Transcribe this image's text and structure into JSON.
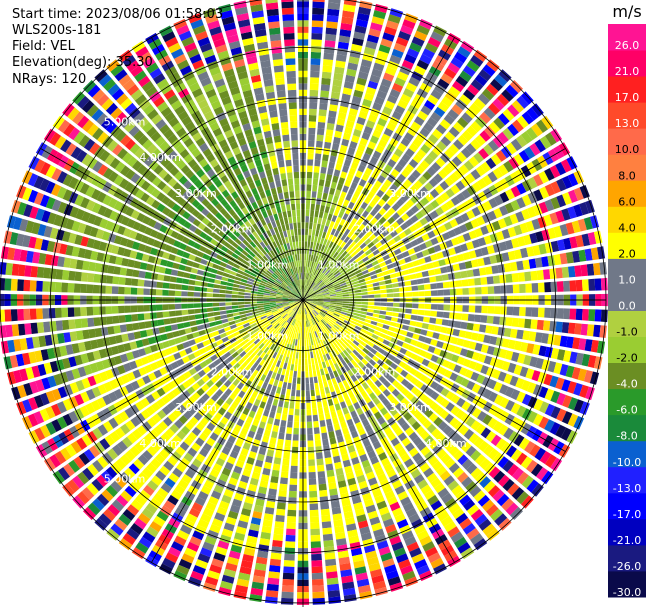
{
  "info": {
    "start_time": "Start time: 2023/08/06 01:58:03",
    "instrument": "WLS200s-181",
    "field": "Field: VEL",
    "elevation": "Elevation(deg): 35.30",
    "nrays": "NRays: 120"
  },
  "chart_data": {
    "type": "heatmap",
    "projection": "polar-ppi",
    "field": "VEL",
    "units": "m/s",
    "n_rays": 120,
    "elevation_deg": 35.3,
    "max_range_km": 6.0,
    "range_rings_km": [
      1,
      2,
      3,
      4,
      5,
      6
    ],
    "azimuth_spokes_deg": [
      0,
      30,
      60,
      90,
      120,
      150,
      180,
      210,
      240,
      270,
      300,
      330
    ],
    "ring_labels": {
      "nw": [
        "1.00km",
        "2.00km",
        "3.00km",
        "4.00km",
        "5.00km"
      ],
      "ne": [
        "1.00km",
        "2.00km",
        "3.00km"
      ],
      "se": [
        "1.00km",
        "2.00km",
        "3.00km",
        "4.00km"
      ],
      "sw": [
        "1.00km",
        "2.00km",
        "3.00km",
        "4.00km",
        "5.00km"
      ]
    },
    "colorbar": {
      "title": "m/s",
      "levels": [
        -30,
        -26,
        -21,
        -17,
        -13,
        -10,
        -8,
        -6,
        -4,
        -2,
        -1,
        0,
        1,
        2,
        4,
        6,
        8,
        10,
        13,
        17,
        21,
        26,
        30
      ],
      "tick_labels": [
        "-30.0",
        "-26.0",
        "-21.0",
        "-17.0",
        "-13.0",
        "-10.0",
        "-8.0",
        "-6.0",
        "-4.0",
        "-2.0",
        "-1.0",
        "0.0",
        "1.0",
        "2.0",
        "4.0",
        "6.0",
        "8.0",
        "10.0",
        "13.0",
        "17.0",
        "21.0",
        "26.0"
      ],
      "colors": [
        "#0a0a4a",
        "#1a1a80",
        "#0000c0",
        "#0000ff",
        "#2020ff",
        "#0a60d0",
        "#1a8a3a",
        "#2a9a2a",
        "#6b8e23",
        "#9acd32",
        "#b0d040",
        "#707888",
        "#707888",
        "#ffff00",
        "#ffd700",
        "#ffa500",
        "#ff8040",
        "#ff6a4a",
        "#ff4a2a",
        "#ff2020",
        "#ff0066",
        "#ff1493"
      ]
    },
    "pattern_summary": {
      "inner_south_and_east": "positive 1 to 4 m/s (yellow)",
      "northwest_sector": "negative -1 to -6 m/s (olive/green)",
      "beyond_5km": "noisy, full colour range"
    }
  }
}
